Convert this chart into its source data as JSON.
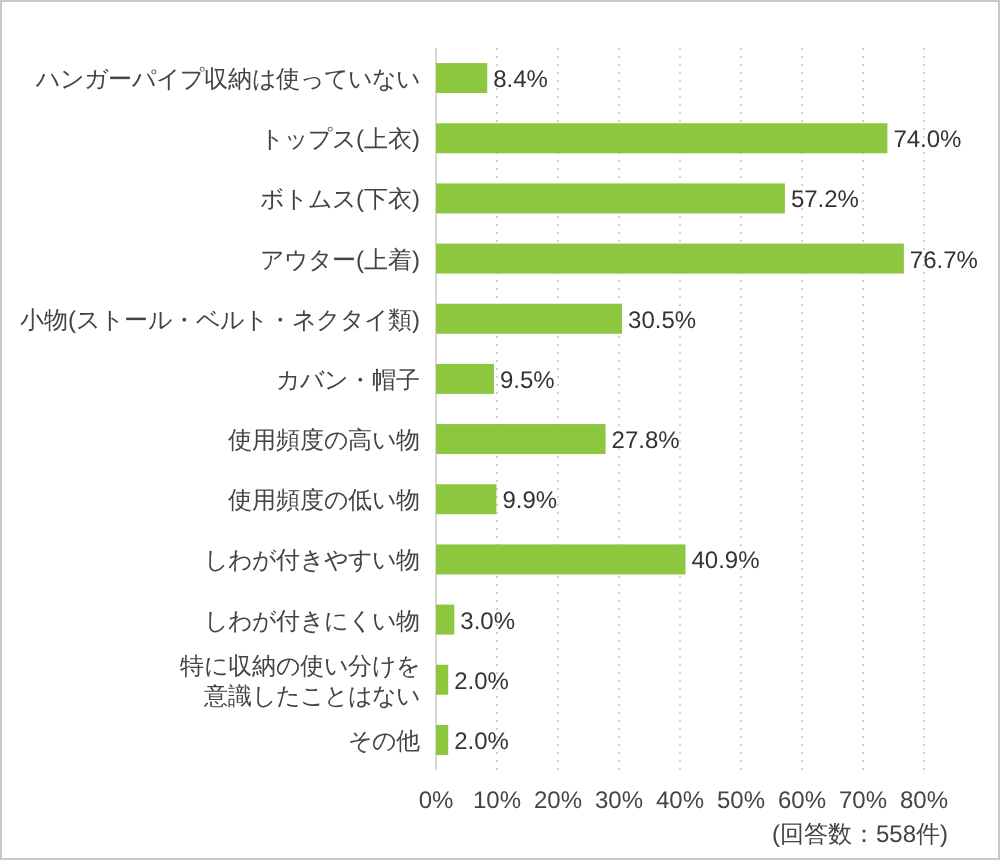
{
  "chart_data": {
    "type": "bar",
    "orientation": "horizontal",
    "categories": [
      "ハンガーパイプ収納は使っていない",
      "トップス(上衣)",
      "ボトムス(下衣)",
      "アウター(上着)",
      "小物(ストール・ベルト・ネクタイ類)",
      "カバン・帽子",
      "使用頻度の高い物",
      "使用頻度の低い物",
      "しわが付きやすい物",
      "しわが付きにくい物",
      "特に収納の使い分けを意識したことはない",
      "その他"
    ],
    "values": [
      8.4,
      74.0,
      57.2,
      76.7,
      30.5,
      9.5,
      27.8,
      9.9,
      40.9,
      3.0,
      2.0,
      2.0
    ],
    "value_labels": [
      "8.4%",
      "74.0%",
      "57.2%",
      "76.7%",
      "30.5%",
      "9.5%",
      "27.8%",
      "9.9%",
      "40.9%",
      "3.0%",
      "2.0%",
      "2.0%"
    ],
    "color": "#8dc63f",
    "xlim": [
      0,
      80
    ],
    "xticks": [
      {
        "value": 0,
        "label": "0%"
      },
      {
        "value": 10,
        "label": "10%"
      },
      {
        "value": 20,
        "label": "20%"
      },
      {
        "value": 30,
        "label": "30%"
      },
      {
        "value": 40,
        "label": "40%"
      },
      {
        "value": 50,
        "label": "50%"
      },
      {
        "value": 60,
        "label": "60%"
      },
      {
        "value": 70,
        "label": "70%"
      },
      {
        "value": 80,
        "label": "80%"
      }
    ],
    "grid": "x",
    "annotations": [
      "(回答数：558件)"
    ]
  }
}
